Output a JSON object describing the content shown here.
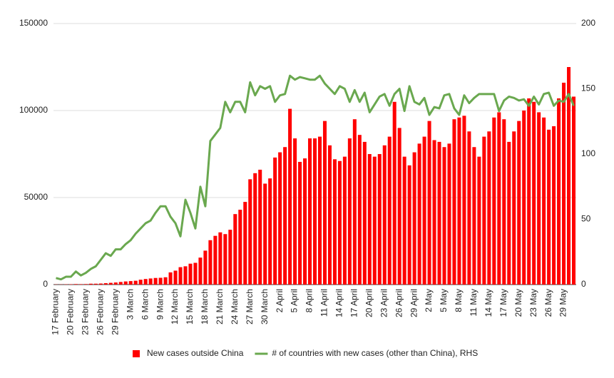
{
  "chart_data": {
    "type": "combo",
    "categories": [
      "17 February",
      null,
      null,
      "20 February",
      null,
      null,
      "23 February",
      null,
      null,
      "26 February",
      null,
      null,
      "29 February",
      null,
      null,
      "3 March",
      null,
      null,
      "6 March",
      null,
      null,
      "9 March",
      null,
      null,
      "12 March",
      null,
      null,
      "15 March",
      null,
      null,
      "18 March",
      null,
      null,
      "21 March",
      null,
      null,
      "24 March",
      null,
      null,
      "27 March",
      null,
      null,
      "30 March",
      null,
      null,
      "2 April",
      null,
      null,
      "5 April",
      null,
      null,
      "8 April",
      null,
      null,
      "11 April",
      null,
      null,
      "14 April",
      null,
      null,
      "17 April",
      null,
      null,
      "20 April",
      null,
      null,
      "23 April",
      null,
      null,
      "26 April",
      null,
      null,
      "29 April",
      null,
      null,
      "2 May",
      null,
      null,
      "5 May",
      null,
      null,
      "8 May",
      null,
      null,
      "11 May",
      null,
      null,
      "14 May",
      null,
      null,
      "17 May",
      null,
      null,
      "20 May",
      null,
      null,
      "23 May",
      null,
      null,
      "26 May",
      null,
      null,
      "29 May",
      null,
      null
    ],
    "series": [
      {
        "name": "New cases outside China",
        "type": "bar",
        "color": "#ff0000",
        "values": [
          100,
          100,
          150,
          200,
          300,
          250,
          300,
          500,
          500,
          600,
          800,
          1000,
          1200,
          1500,
          1800,
          2000,
          2200,
          2800,
          3200,
          3500,
          3800,
          3900,
          4200,
          7000,
          8000,
          10000,
          10500,
          12000,
          12500,
          15500,
          19500,
          25500,
          28000,
          30000,
          29000,
          31500,
          40500,
          43000,
          47500,
          60500,
          64000,
          66000,
          58000,
          61000,
          73000,
          76000,
          79000,
          101000,
          84000,
          70500,
          72500,
          84000,
          84000,
          85000,
          94000,
          80000,
          72000,
          71000,
          73500,
          84000,
          95000,
          86000,
          82000,
          75000,
          73500,
          75000,
          80000,
          85000,
          105000,
          90000,
          73500,
          68500,
          76000,
          81000,
          85000,
          94000,
          83000,
          82000,
          79000,
          81000,
          95000,
          96000,
          97000,
          88000,
          79000,
          73500,
          85000,
          88000,
          96000,
          99000,
          95000,
          82000,
          88000,
          94000,
          100000,
          107000,
          105000,
          99000,
          96000,
          89000,
          91000,
          107000,
          116000,
          125000,
          108000
        ]
      },
      {
        "name": "# of countries with new cases (other than China), RHS",
        "type": "line",
        "axis": "y2",
        "color": "#6aa84f",
        "values": [
          5,
          4,
          6,
          6,
          10,
          7,
          9,
          12,
          14,
          19,
          24,
          22,
          27,
          27,
          31,
          34,
          39,
          43,
          47,
          49,
          55,
          60,
          60,
          52,
          47,
          37,
          65,
          55,
          43,
          75,
          60,
          110,
          115,
          120,
          140,
          132,
          140,
          140,
          132,
          155,
          145,
          152,
          150,
          152,
          140,
          145,
          146,
          160,
          157,
          159,
          158,
          157,
          157,
          160,
          154,
          150,
          146,
          152,
          150,
          140,
          149,
          140,
          147,
          132,
          138,
          144,
          146,
          137,
          146,
          150,
          133,
          152,
          140,
          138,
          143,
          130,
          136,
          135,
          145,
          146,
          135,
          130,
          145,
          139,
          143,
          146,
          146,
          146,
          146,
          133,
          141,
          144,
          143,
          141,
          142,
          137,
          144,
          138,
          146,
          147,
          137,
          141,
          140,
          146,
          137
        ]
      }
    ],
    "ylim": [
      0,
      150000
    ],
    "yticks": [
      0,
      50000,
      100000,
      150000
    ],
    "y2lim": [
      0,
      200
    ],
    "y2ticks": [
      0,
      50,
      100,
      150,
      200
    ],
    "grid": true,
    "legend": "bottom"
  }
}
